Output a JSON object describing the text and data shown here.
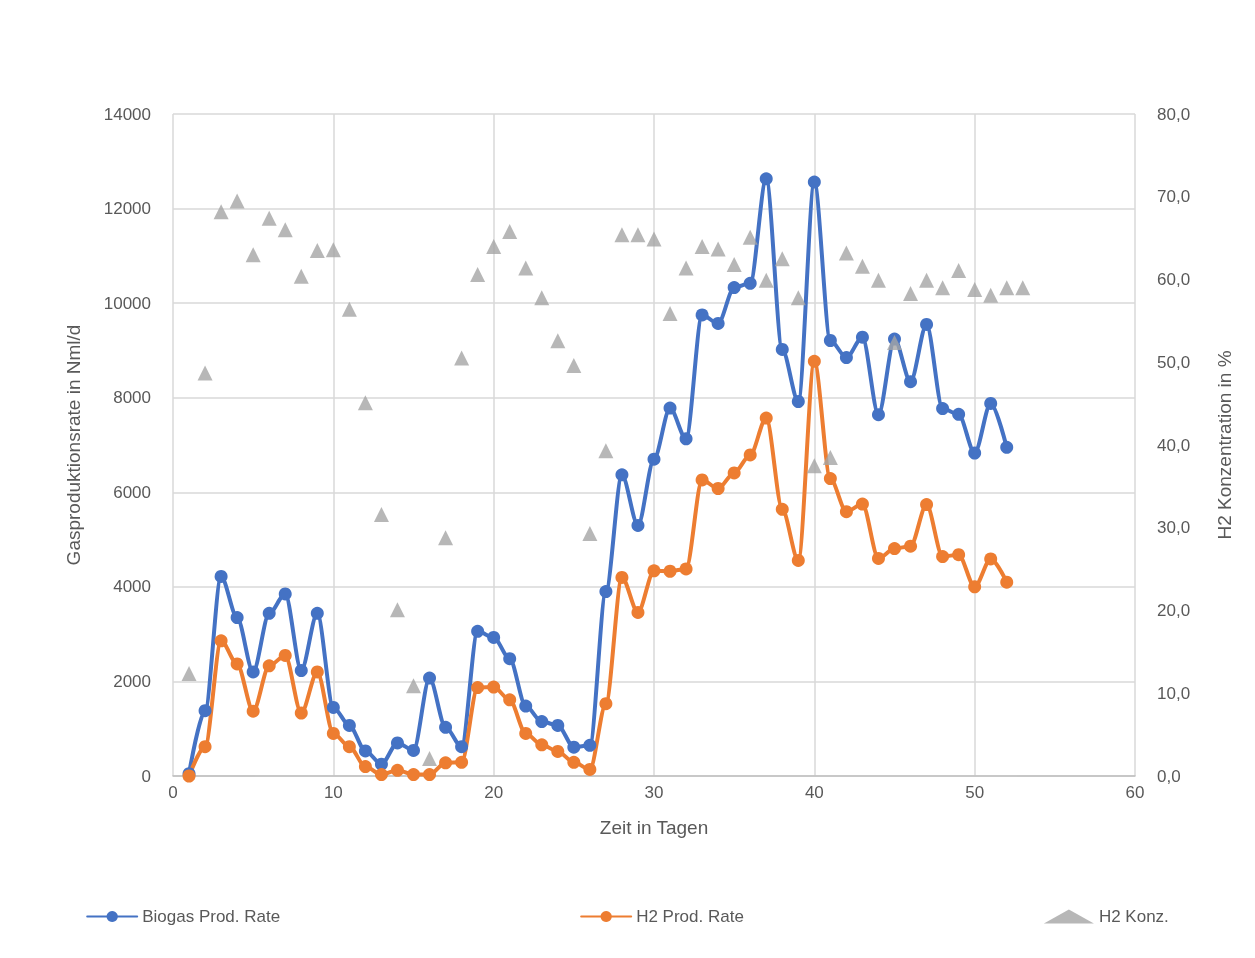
{
  "chart_data": {
    "type": "line",
    "xlabel": "Zeit in Tagen",
    "ylabel": "Gasproduktionsrate in Nml/d",
    "y2label": "H2 Konzentration in %",
    "xlim": [
      0,
      60
    ],
    "xticks": [
      0,
      10,
      20,
      30,
      40,
      50,
      60
    ],
    "ylim": [
      0,
      14000
    ],
    "yticks": [
      0,
      2000,
      4000,
      6000,
      8000,
      10000,
      12000,
      14000
    ],
    "y2lim": [
      0,
      80
    ],
    "y2ticks": [
      {
        "value": 0,
        "label": "0,0"
      },
      {
        "value": 10,
        "label": "10,0"
      },
      {
        "value": 20,
        "label": "20,0"
      },
      {
        "value": 30,
        "label": "30,0"
      },
      {
        "value": 40,
        "label": "40,0"
      },
      {
        "value": 50,
        "label": "50,0"
      },
      {
        "value": 60,
        "label": "60,0"
      },
      {
        "value": 70,
        "label": "70,0"
      },
      {
        "value": 80,
        "label": "80,0"
      }
    ],
    "grid": true,
    "legend": "bottom",
    "marker": "circle",
    "line_style": "solid",
    "series": [
      {
        "name": "Biogas Prod. Rate",
        "color": "#4472c4",
        "x": [
          1,
          2,
          3,
          4,
          5,
          6,
          7,
          8,
          9,
          10,
          11,
          12,
          13,
          14,
          15,
          16,
          17,
          18,
          19,
          20,
          21,
          22,
          23,
          24,
          25,
          26,
          27,
          28,
          29,
          30,
          31,
          32,
          33,
          34,
          35,
          36,
          37,
          38,
          39,
          40,
          41,
          42,
          43,
          44,
          45,
          46,
          47,
          48,
          49,
          50,
          51,
          52
        ],
        "values": [
          50,
          1380,
          4220,
          3350,
          2200,
          3440,
          3850,
          2230,
          3440,
          1450,
          1070,
          530,
          250,
          700,
          540,
          2070,
          1030,
          620,
          3060,
          2930,
          2480,
          1480,
          1150,
          1070,
          610,
          650,
          3900,
          6370,
          5300,
          6700,
          7780,
          7130,
          9750,
          9570,
          10330,
          10420,
          12630,
          9020,
          7920,
          12560,
          9210,
          8850,
          9280,
          7640,
          9240,
          8340,
          9550,
          7770,
          7650,
          6830,
          7880,
          6950
        ]
      },
      {
        "name": "H2 Prod. Rate",
        "color": "#ed7d31",
        "x": [
          1,
          2,
          3,
          4,
          5,
          6,
          7,
          8,
          9,
          10,
          11,
          12,
          13,
          14,
          15,
          16,
          17,
          18,
          19,
          20,
          21,
          22,
          23,
          24,
          25,
          26,
          27,
          28,
          29,
          30,
          31,
          32,
          33,
          34,
          35,
          36,
          37,
          38,
          39,
          40,
          41,
          42,
          43,
          44,
          45,
          46,
          47,
          48,
          49,
          50,
          51,
          52
        ],
        "values": [
          0,
          620,
          2860,
          2370,
          1370,
          2330,
          2550,
          1330,
          2200,
          900,
          620,
          200,
          30,
          120,
          30,
          30,
          280,
          290,
          1870,
          1880,
          1610,
          900,
          660,
          520,
          290,
          140,
          1530,
          4200,
          3460,
          4340,
          4330,
          4380,
          6260,
          6080,
          6410,
          6790,
          7570,
          5640,
          4560,
          8770,
          6290,
          5590,
          5750,
          4600,
          4810,
          4860,
          5740,
          4640,
          4680,
          4000,
          4590,
          4100
        ]
      },
      {
        "name": "H2 Konz.",
        "type": "scatter",
        "axis": "y2",
        "marker": "triangle",
        "color": "#a5a5a5",
        "x": [
          1,
          2,
          3,
          4,
          5,
          6,
          7,
          8,
          9,
          10,
          11,
          12,
          13,
          14,
          15,
          16,
          17,
          18,
          19,
          20,
          21,
          22,
          23,
          24,
          25,
          26,
          27,
          28,
          29,
          30,
          31,
          32,
          33,
          34,
          35,
          36,
          37,
          38,
          39,
          40,
          41,
          42,
          43,
          44,
          45,
          46,
          47,
          48,
          49,
          50,
          51,
          52,
          53
        ],
        "values": [
          12.4,
          48.7,
          68.2,
          69.5,
          63.0,
          67.4,
          66.0,
          60.4,
          63.5,
          63.6,
          56.4,
          45.1,
          31.6,
          20.1,
          10.9,
          2.1,
          28.8,
          50.5,
          60.6,
          64.0,
          65.8,
          61.4,
          57.8,
          52.6,
          49.6,
          29.3,
          39.3,
          65.4,
          65.4,
          64.9,
          55.9,
          61.4,
          64.0,
          63.7,
          61.8,
          65.1,
          59.9,
          62.5,
          57.8,
          37.5,
          38.5,
          63.2,
          61.6,
          59.9,
          52.4,
          58.3,
          59.9,
          59.0,
          61.1,
          58.8,
          58.1,
          59.0,
          59.0
        ]
      }
    ]
  }
}
